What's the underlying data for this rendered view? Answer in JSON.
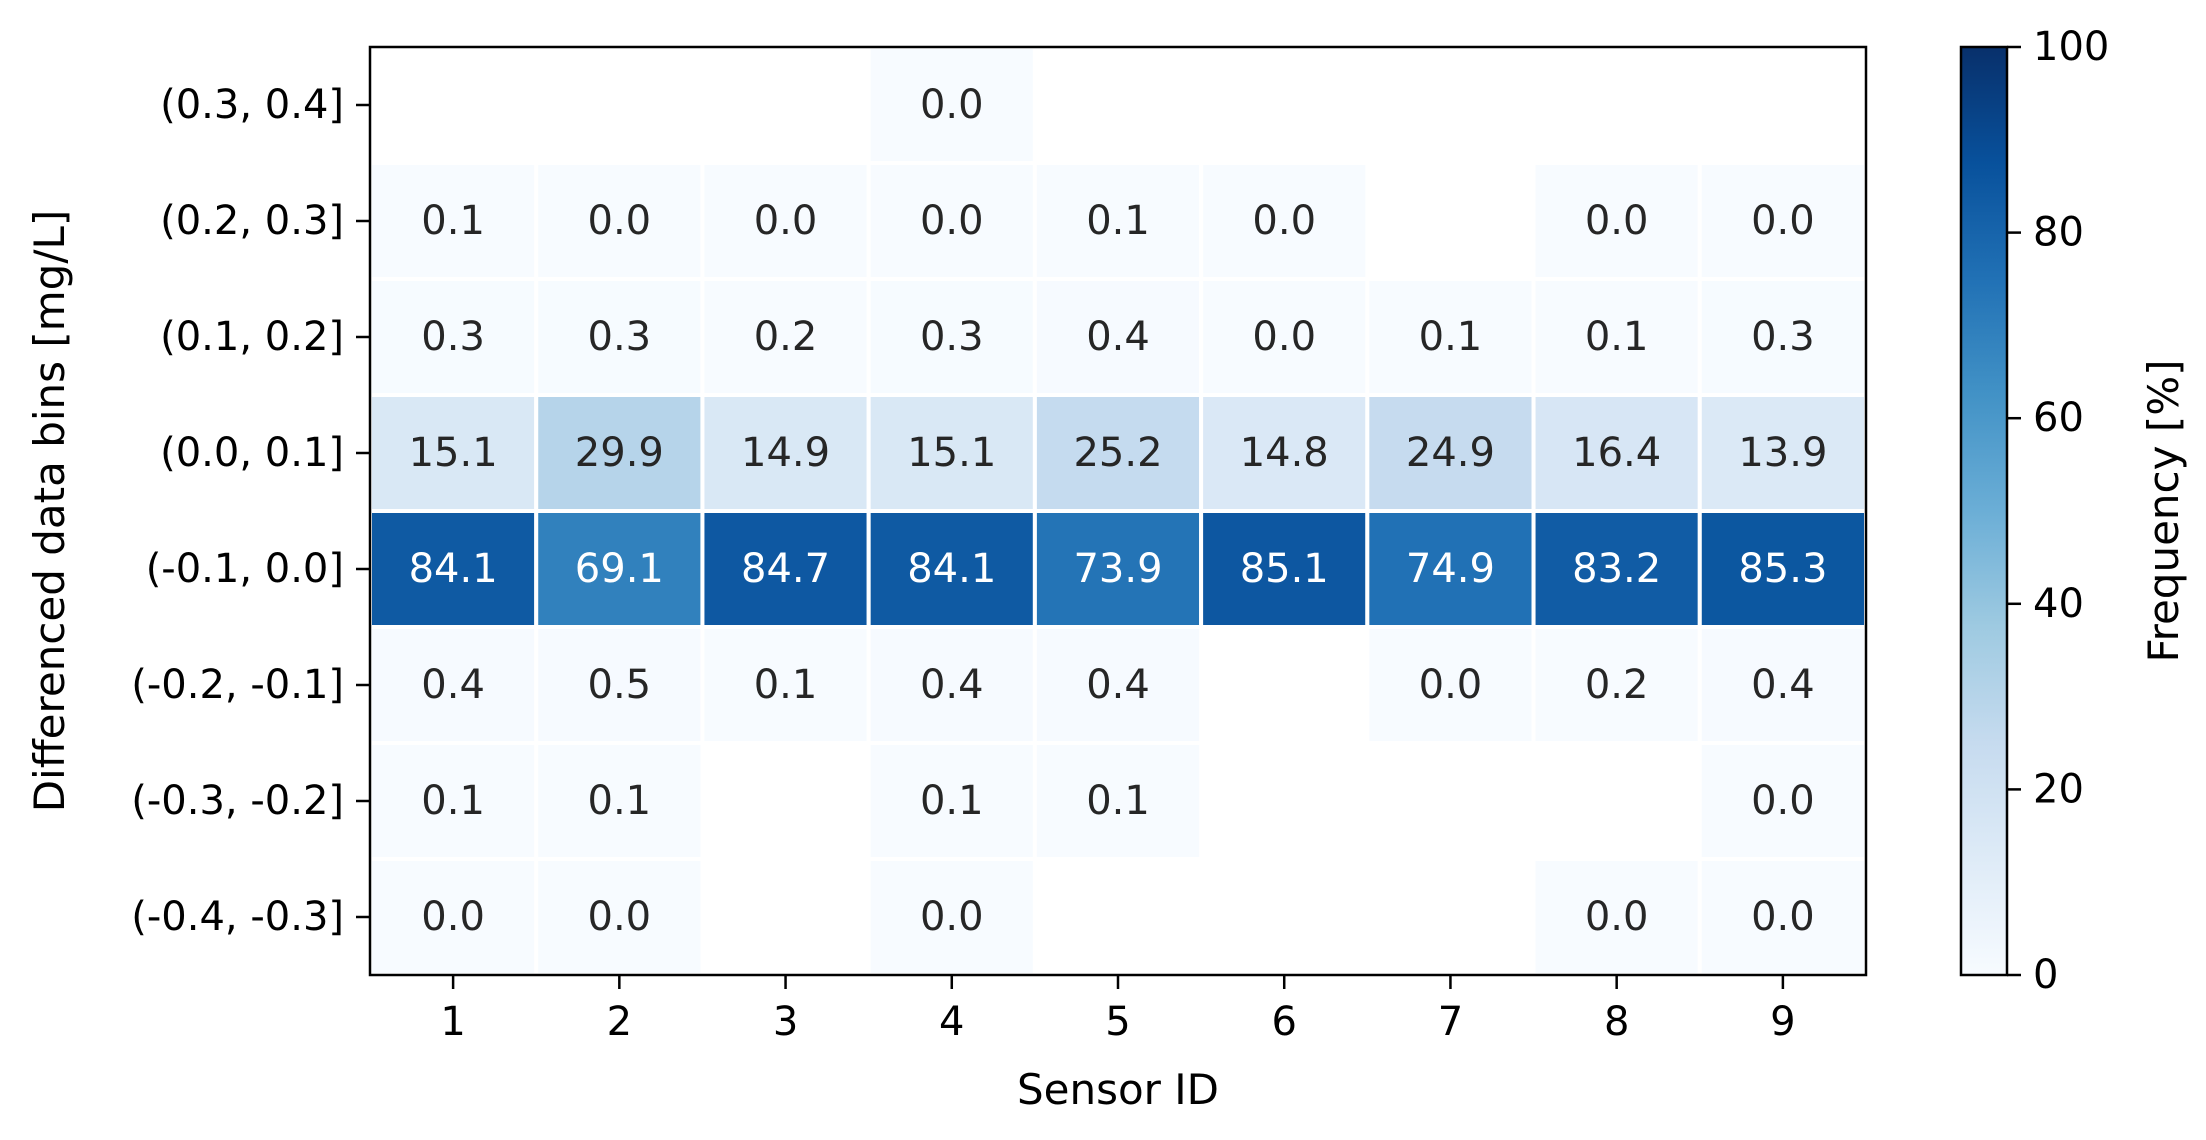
{
  "chart_data": {
    "type": "heatmap",
    "xlabel": "Sensor ID",
    "ylabel": "Differenced data bins [mg/L]",
    "x_categories": [
      "1",
      "2",
      "3",
      "4",
      "5",
      "6",
      "7",
      "8",
      "9"
    ],
    "y_categories": [
      "(0.3, 0.4]",
      "(0.2, 0.3]",
      "(0.1, 0.2]",
      "(0.0, 0.1]",
      "(-0.1, 0.0]",
      "(-0.2, -0.1]",
      "(-0.3, -0.2]",
      "(-0.4, -0.3]"
    ],
    "values": [
      [
        null,
        null,
        null,
        0.0,
        null,
        null,
        null,
        null,
        null
      ],
      [
        0.1,
        0.0,
        0.0,
        0.0,
        0.1,
        0.0,
        null,
        0.0,
        0.0
      ],
      [
        0.3,
        0.3,
        0.2,
        0.3,
        0.4,
        0.0,
        0.1,
        0.1,
        0.3
      ],
      [
        15.1,
        29.9,
        14.9,
        15.1,
        25.2,
        14.8,
        24.9,
        16.4,
        13.9
      ],
      [
        84.1,
        69.1,
        84.7,
        84.1,
        73.9,
        85.1,
        74.9,
        83.2,
        85.3
      ],
      [
        0.4,
        0.5,
        0.1,
        0.4,
        0.4,
        null,
        0.0,
        0.2,
        0.4
      ],
      [
        0.1,
        0.1,
        null,
        0.1,
        0.1,
        null,
        null,
        null,
        0.0
      ],
      [
        0.0,
        0.0,
        null,
        0.0,
        null,
        null,
        null,
        0.0,
        0.0
      ]
    ],
    "colorbar": {
      "label": "Frequency [%]",
      "range": [
        0,
        100
      ],
      "ticks": [
        "0",
        "20",
        "40",
        "60",
        "80",
        "100"
      ],
      "colormap": "Blues"
    },
    "grid": false
  }
}
